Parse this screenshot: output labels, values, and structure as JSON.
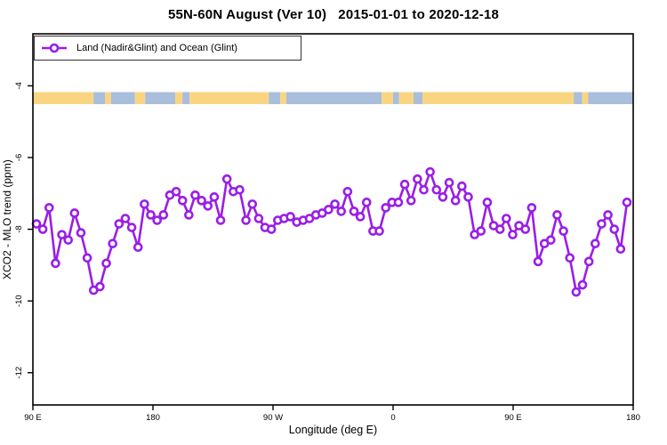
{
  "title": "55N-60N August (Ver 10)   2015-01-01 to 2020-12-18",
  "legend": {
    "label": "Land (Nadir&Glint) and Ocean (Glint)"
  },
  "axes": {
    "x": {
      "title": "Longitude (deg E)",
      "tick_labels": [
        "90 E",
        "180",
        "90 W",
        "0",
        "90 E",
        "180"
      ],
      "span_degrees": 450
    },
    "y": {
      "title": "XCO2 - MLO trend (ppm)",
      "ticks": [
        -4,
        -6,
        -8,
        -10,
        -12
      ]
    }
  },
  "colors": {
    "series": "#9A1EE6",
    "marker_fill": "#ffffff",
    "land": "#FAD581",
    "ocean": "#A9BEDB",
    "frame": "#000000"
  },
  "map_strip": {
    "meaning": "land(tan)/ocean(blue) band along 55N-60N",
    "segments": [
      {
        "start_pct": 0.0,
        "end_pct": 10.1,
        "type": "land"
      },
      {
        "start_pct": 10.1,
        "end_pct": 12.0,
        "type": "ocean"
      },
      {
        "start_pct": 12.0,
        "end_pct": 13.0,
        "type": "land"
      },
      {
        "start_pct": 13.0,
        "end_pct": 17.0,
        "type": "ocean"
      },
      {
        "start_pct": 17.0,
        "end_pct": 18.7,
        "type": "land"
      },
      {
        "start_pct": 18.7,
        "end_pct": 23.7,
        "type": "ocean"
      },
      {
        "start_pct": 23.7,
        "end_pct": 24.9,
        "type": "land"
      },
      {
        "start_pct": 24.9,
        "end_pct": 26.1,
        "type": "ocean"
      },
      {
        "start_pct": 26.1,
        "end_pct": 39.3,
        "type": "land"
      },
      {
        "start_pct": 39.3,
        "end_pct": 41.2,
        "type": "ocean"
      },
      {
        "start_pct": 41.2,
        "end_pct": 42.2,
        "type": "land"
      },
      {
        "start_pct": 42.2,
        "end_pct": 58.1,
        "type": "ocean"
      },
      {
        "start_pct": 58.1,
        "end_pct": 60.0,
        "type": "land"
      },
      {
        "start_pct": 60.0,
        "end_pct": 61.0,
        "type": "ocean"
      },
      {
        "start_pct": 61.0,
        "end_pct": 63.4,
        "type": "land"
      },
      {
        "start_pct": 63.4,
        "end_pct": 64.9,
        "type": "ocean"
      },
      {
        "start_pct": 64.9,
        "end_pct": 90.1,
        "type": "land"
      },
      {
        "start_pct": 90.1,
        "end_pct": 91.5,
        "type": "ocean"
      },
      {
        "start_pct": 91.5,
        "end_pct": 92.5,
        "type": "land"
      },
      {
        "start_pct": 92.5,
        "end_pct": 100.0,
        "type": "ocean"
      }
    ]
  },
  "chart_data": {
    "type": "line",
    "title": "55N-60N August (Ver 10) 2015-01-01 to 2020-12-18",
    "xlabel": "Longitude (deg E)",
    "ylabel": "XCO2 - MLO trend (ppm)",
    "legend_position": "top-left",
    "grid": false,
    "x_axis_note": "longitude wraps: 90E -> 180 -> 90W -> 0 -> 90E -> 180 (450 deg total), points evenly spaced",
    "x_range_deg": [
      91,
      539
    ],
    "ylim": [
      -12.9,
      -2.55
    ],
    "y_ticks": [
      -4,
      -6,
      -8,
      -10,
      -12
    ],
    "series": [
      {
        "name": "Land (Nadir&Glint) and Ocean (Glint)",
        "color": "#9A1EE6",
        "marker": "open-circle",
        "values": [
          -7.85,
          -8.0,
          -7.4,
          -8.95,
          -8.15,
          -8.3,
          -7.55,
          -8.1,
          -8.8,
          -9.7,
          -9.6,
          -8.95,
          -8.4,
          -7.85,
          -7.7,
          -7.95,
          -8.5,
          -7.3,
          -7.6,
          -7.75,
          -7.6,
          -7.05,
          -6.95,
          -7.2,
          -7.6,
          -7.05,
          -7.2,
          -7.35,
          -7.1,
          -7.75,
          -6.6,
          -6.95,
          -6.9,
          -7.75,
          -7.3,
          -7.7,
          -7.95,
          -8.0,
          -7.75,
          -7.7,
          -7.65,
          -7.8,
          -7.75,
          -7.7,
          -7.6,
          -7.55,
          -7.45,
          -7.3,
          -7.5,
          -6.95,
          -7.5,
          -7.65,
          -7.25,
          -8.05,
          -8.05,
          -7.4,
          -7.25,
          -7.25,
          -6.75,
          -7.2,
          -6.6,
          -6.9,
          -6.4,
          -6.9,
          -7.1,
          -6.7,
          -7.2,
          -6.8,
          -7.1,
          -8.15,
          -8.05,
          -7.25,
          -7.9,
          -8.0,
          -7.7,
          -8.15,
          -7.9,
          -8.0,
          -7.4,
          -8.9,
          -8.4,
          -8.3,
          -7.6,
          -8.05,
          -8.8,
          -9.75,
          -9.55,
          -8.9,
          -8.4,
          -7.85,
          -7.6,
          -8.0,
          -8.55,
          -7.25
        ]
      }
    ]
  }
}
